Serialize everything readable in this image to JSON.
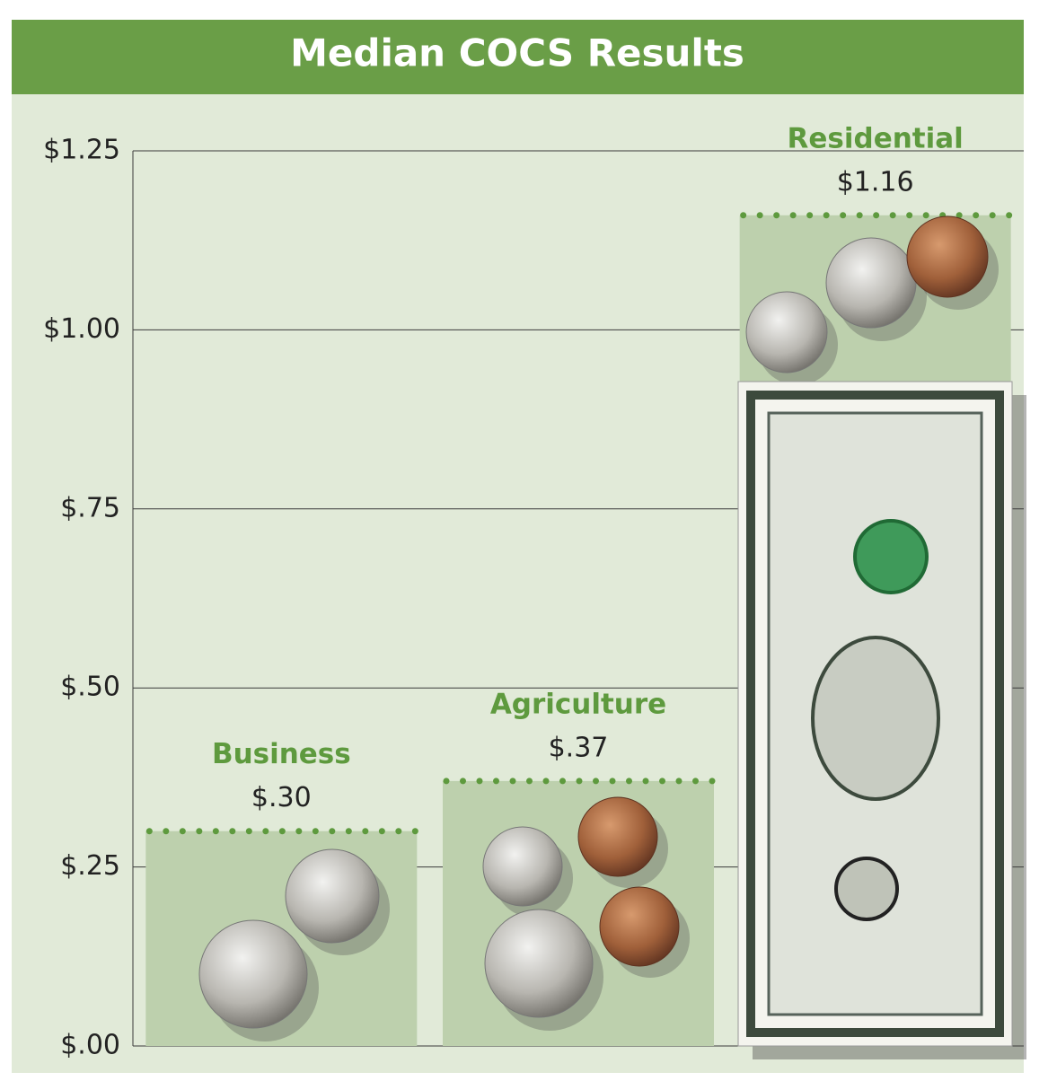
{
  "chart_data": {
    "type": "bar",
    "title": "Median COCS Results",
    "categories": [
      "Business",
      "Agriculture",
      "Residential"
    ],
    "values": [
      0.3,
      0.37,
      1.16
    ],
    "value_labels": [
      "$.30",
      "$.37",
      "$1.16"
    ],
    "color": "#bdd0ad",
    "label_color": "#5e9a3e",
    "ylim": [
      0,
      1.25
    ],
    "yticks": [
      {
        "value": 0,
        "label": "$.00"
      },
      {
        "value": 0.25,
        "label": "$.25"
      },
      {
        "value": 0.5,
        "label": "$.50"
      },
      {
        "value": 0.75,
        "label": "$.75"
      },
      {
        "value": 1.0,
        "label": "$1.00"
      },
      {
        "value": 1.25,
        "label": "$1.25"
      }
    ],
    "grid": true
  }
}
